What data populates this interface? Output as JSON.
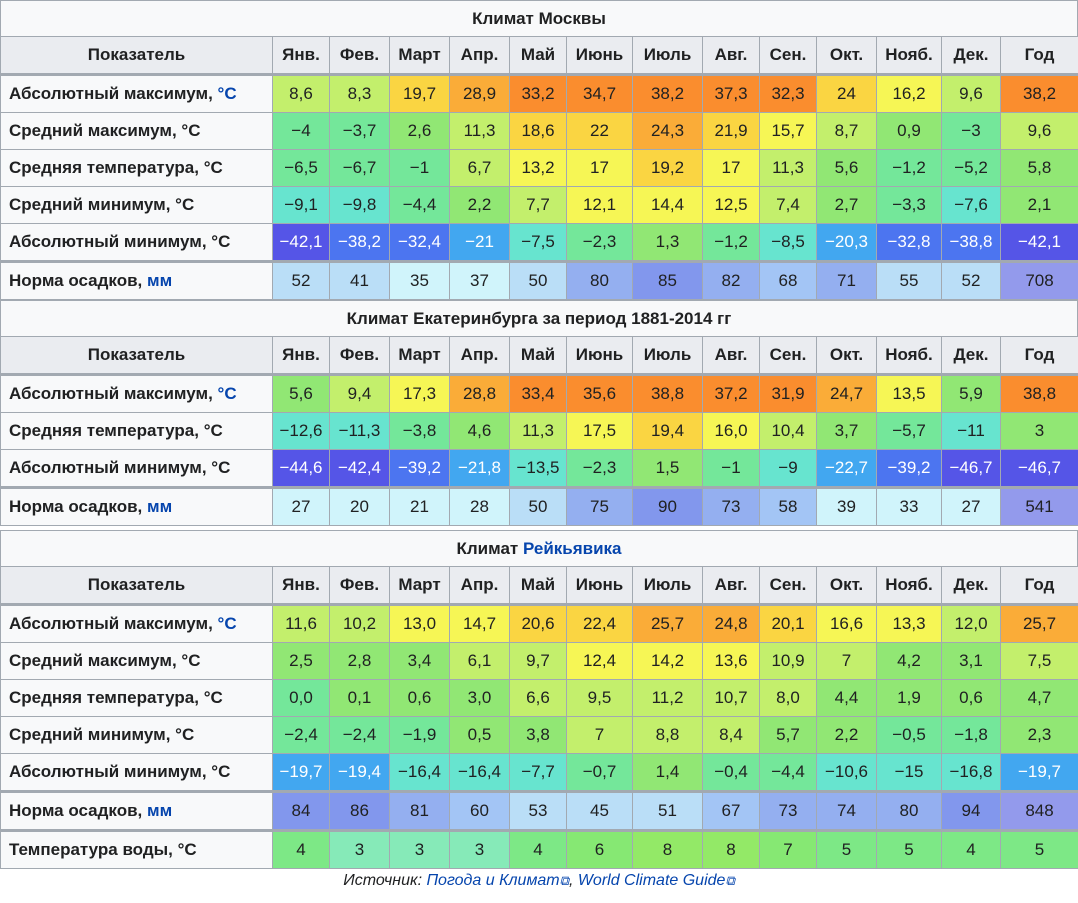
{
  "months_header": [
    "Показатель",
    "Янв.",
    "Фев.",
    "Март",
    "Апр.",
    "Май",
    "Июнь",
    "Июль",
    "Авг.",
    "Сен.",
    "Окт.",
    "Нояб.",
    "Дек.",
    "Год"
  ],
  "tables": [
    {
      "caption": "Климат Москвы",
      "caption_link": "",
      "rows": [
        {
          "label": "Абсолютный максимум,",
          "unit": "°C",
          "unit_linked": true,
          "kind": "temp",
          "values": [
            "8,6",
            "8,3",
            "19,7",
            "28,9",
            "33,2",
            "34,7",
            "38,2",
            "37,3",
            "32,3",
            "24",
            "16,2",
            "9,6",
            "38,2"
          ]
        },
        {
          "label": "Средний максимум, °C",
          "unit": "",
          "unit_linked": false,
          "kind": "temp",
          "values": [
            "−4",
            "−3,7",
            "2,6",
            "11,3",
            "18,6",
            "22",
            "24,3",
            "21,9",
            "15,7",
            "8,7",
            "0,9",
            "−3",
            "9,6"
          ]
        },
        {
          "label": "Средняя температура, °C",
          "unit": "",
          "unit_linked": false,
          "kind": "temp",
          "values": [
            "−6,5",
            "−6,7",
            "−1",
            "6,7",
            "13,2",
            "17",
            "19,2",
            "17",
            "11,3",
            "5,6",
            "−1,2",
            "−5,2",
            "5,8"
          ]
        },
        {
          "label": "Средний минимум, °C",
          "unit": "",
          "unit_linked": false,
          "kind": "temp",
          "values": [
            "−9,1",
            "−9,8",
            "−4,4",
            "2,2",
            "7,7",
            "12,1",
            "14,4",
            "12,5",
            "7,4",
            "2,7",
            "−3,3",
            "−7,6",
            "2,1"
          ]
        },
        {
          "label": "Абсолютный минимум, °C",
          "unit": "",
          "unit_linked": false,
          "kind": "temp",
          "values": [
            "−42,1",
            "−38,2",
            "−32,4",
            "−21",
            "−7,5",
            "−2,3",
            "1,3",
            "−1,2",
            "−8,5",
            "−20,3",
            "−32,8",
            "−38,8",
            "−42,1"
          ]
        },
        {
          "label": "Норма осадков,",
          "unit": "мм",
          "unit_linked": true,
          "kind": "precip",
          "values": [
            "52",
            "41",
            "35",
            "37",
            "50",
            "80",
            "85",
            "82",
            "68",
            "71",
            "55",
            "52",
            "708"
          ]
        }
      ]
    },
    {
      "caption": "Климат Екатеринбурга за период 1881-2014 гг",
      "caption_link": "",
      "rows": [
        {
          "label": "Абсолютный максимум,",
          "unit": "°C",
          "unit_linked": true,
          "kind": "temp",
          "values": [
            "5,6",
            "9,4",
            "17,3",
            "28,8",
            "33,4",
            "35,6",
            "38,8",
            "37,2",
            "31,9",
            "24,7",
            "13,5",
            "5,9",
            "38,8"
          ]
        },
        {
          "label": "Средняя температура, °C",
          "unit": "",
          "unit_linked": false,
          "kind": "temp",
          "values": [
            "−12,6",
            "−11,3",
            "−3,8",
            "4,6",
            "11,3",
            "17,5",
            "19,4",
            "16,0",
            "10,4",
            "3,7",
            "−5,7",
            "−11",
            "3"
          ]
        },
        {
          "label": "Абсолютный минимум, °C",
          "unit": "",
          "unit_linked": false,
          "kind": "temp",
          "values": [
            "−44,6",
            "−42,4",
            "−39,2",
            "−21,8",
            "−13,5",
            "−2,3",
            "1,5",
            "−1",
            "−9",
            "−22,7",
            "−39,2",
            "−46,7",
            "−46,7"
          ]
        },
        {
          "label": "Норма осадков,",
          "unit": "мм",
          "unit_linked": true,
          "kind": "precip",
          "values": [
            "27",
            "20",
            "21",
            "28",
            "50",
            "75",
            "90",
            "73",
            "58",
            "39",
            "33",
            "27",
            "541"
          ]
        }
      ]
    },
    {
      "caption": "Климат ",
      "caption_link": "Рейкьявика",
      "rows": [
        {
          "label": "Абсолютный максимум,",
          "unit": "°C",
          "unit_linked": true,
          "kind": "temp",
          "values": [
            "11,6",
            "10,2",
            "13,0",
            "14,7",
            "20,6",
            "22,4",
            "25,7",
            "24,8",
            "20,1",
            "16,6",
            "13,3",
            "12,0",
            "25,7"
          ]
        },
        {
          "label": "Средний максимум, °C",
          "unit": "",
          "unit_linked": false,
          "kind": "temp",
          "values": [
            "2,5",
            "2,8",
            "3,4",
            "6,1",
            "9,7",
            "12,4",
            "14,2",
            "13,6",
            "10,9",
            "7",
            "4,2",
            "3,1",
            "7,5"
          ]
        },
        {
          "label": "Средняя температура, °C",
          "unit": "",
          "unit_linked": false,
          "kind": "temp",
          "values": [
            "0,0",
            "0,1",
            "0,6",
            "3,0",
            "6,6",
            "9,5",
            "11,2",
            "10,7",
            "8,0",
            "4,4",
            "1,9",
            "0,6",
            "4,7"
          ]
        },
        {
          "label": "Средний минимум, °C",
          "unit": "",
          "unit_linked": false,
          "kind": "temp",
          "values": [
            "−2,4",
            "−2,4",
            "−1,9",
            "0,5",
            "3,8",
            "7",
            "8,8",
            "8,4",
            "5,7",
            "2,2",
            "−0,5",
            "−1,8",
            "2,3"
          ]
        },
        {
          "label": "Абсолютный минимум, °C",
          "unit": "",
          "unit_linked": false,
          "kind": "temp",
          "values": [
            "−19,7",
            "−19,4",
            "−16,4",
            "−16,4",
            "−7,7",
            "−0,7",
            "1,4",
            "−0,4",
            "−4,4",
            "−10,6",
            "−15",
            "−16,8",
            "−19,7"
          ]
        },
        {
          "label": "Норма осадков,",
          "unit": "мм",
          "unit_linked": true,
          "kind": "precip",
          "values": [
            "84",
            "86",
            "81",
            "60",
            "53",
            "45",
            "51",
            "67",
            "73",
            "74",
            "80",
            "94",
            "848"
          ]
        },
        {
          "label": "Температура воды, °C",
          "unit": "",
          "unit_linked": false,
          "kind": "water",
          "values": [
            "4",
            "3",
            "3",
            "3",
            "4",
            "6",
            "8",
            "8",
            "7",
            "5",
            "5",
            "4",
            "5"
          ]
        }
      ]
    }
  ],
  "source": {
    "prefix": "Источник: ",
    "link1": "Погода и Климат",
    "separator": ", ",
    "link2": "World Climate Guide",
    "ext_icon": "external-link-icon"
  }
}
